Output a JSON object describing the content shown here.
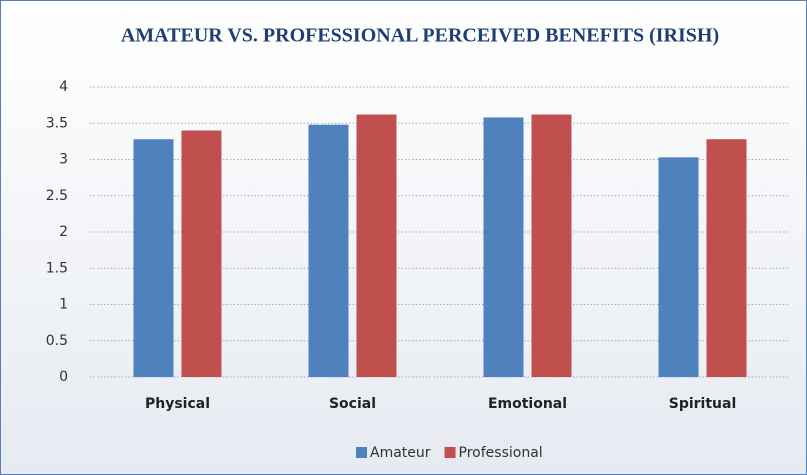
{
  "chart_data": {
    "type": "bar",
    "title": "AMATEUR VS. PROFESSIONAL PERCEIVED BENEFITS (IRISH)",
    "categories": [
      "Physical",
      "Social",
      "Emotional",
      "Spiritual"
    ],
    "series": [
      {
        "name": "Amateur",
        "color": "#4f81bd",
        "values": [
          3.28,
          3.48,
          3.58,
          3.03
        ]
      },
      {
        "name": "Professional",
        "color": "#c0504d",
        "values": [
          3.4,
          3.62,
          3.62,
          3.28
        ]
      }
    ],
    "ylim": [
      0,
      4
    ],
    "yticks": [
      0,
      0.5,
      1,
      1.5,
      2,
      2.5,
      3,
      3.5,
      4
    ],
    "grid": true
  }
}
